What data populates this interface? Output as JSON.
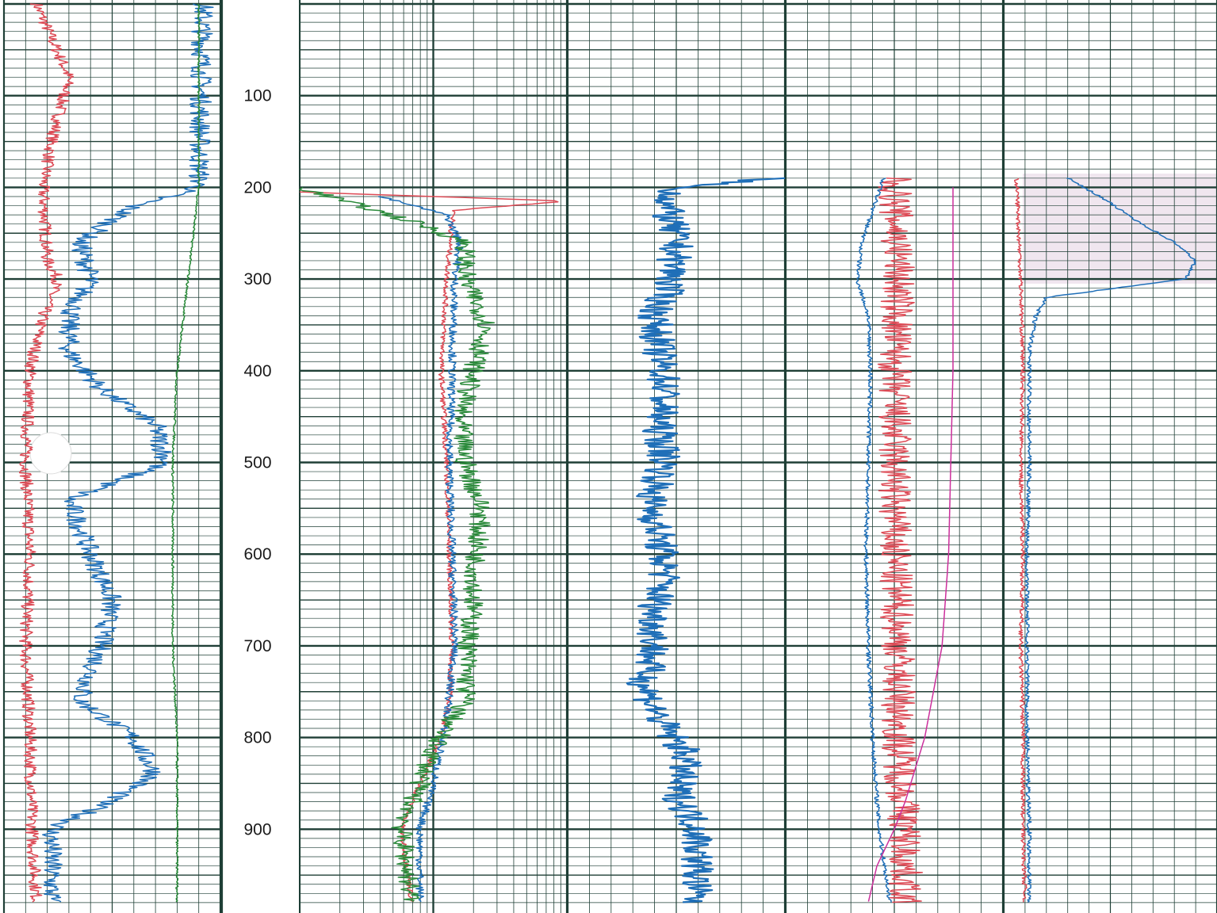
{
  "chart_data": {
    "type": "line",
    "title": "",
    "xlabel": "",
    "ylabel": "",
    "depth_axis": {
      "ylim": [
        0,
        980
      ],
      "tick_labels": [
        "100",
        "200",
        "300",
        "400",
        "500",
        "600",
        "700",
        "800",
        "900"
      ]
    },
    "grid": true,
    "colors": {
      "grid": "#1f3f36",
      "red": "#dd4a55",
      "blue": "#1f6fb8",
      "green": "#2a8a3a",
      "magenta": "#cc2f9c",
      "gray_fill": "#c8c8c8",
      "shade": "#f0e6ef"
    },
    "tracks": [
      {
        "curves": [
          {
            "color": "red",
            "depth": [
              0,
              80,
              150,
              200,
              280,
              300,
              340,
              400,
              500,
              600,
              700,
              800,
              900,
              980
            ],
            "value": [
              0.15,
              0.3,
              0.22,
              0.18,
              0.2,
              0.25,
              0.18,
              0.12,
              0.1,
              0.12,
              0.1,
              0.12,
              0.13,
              0.15
            ],
            "noise": 0.03
          },
          {
            "color": "blue",
            "depth": [
              0,
              200,
              220,
              260,
              300,
              340,
              380,
              420,
              460,
              500,
              540,
              600,
              650,
              700,
              760,
              800,
              840,
              880,
              900,
              980
            ],
            "value": [
              0.92,
              0.9,
              0.6,
              0.35,
              0.4,
              0.3,
              0.3,
              0.45,
              0.7,
              0.75,
              0.3,
              0.4,
              0.5,
              0.45,
              0.35,
              0.6,
              0.7,
              0.4,
              0.22,
              0.22
            ],
            "noise": 0.05
          },
          {
            "color": "green",
            "depth": [
              0,
              200,
              300,
              400,
              500,
              700,
              800,
              980
            ],
            "value": [
              0.9,
              0.9,
              0.85,
              0.8,
              0.78,
              0.78,
              0.8,
              0.8
            ],
            "noise": 0.005
          }
        ]
      },
      {
        "scale": "log",
        "curves": [
          {
            "color": "red",
            "depth": [
              205,
              215,
              225,
              240,
              300,
              400,
              500,
              600,
              700,
              760,
              800,
              850,
              900,
              980
            ],
            "value": [
              0.0,
              1.0,
              0.58,
              0.57,
              0.55,
              0.53,
              0.55,
              0.56,
              0.57,
              0.56,
              0.53,
              0.45,
              0.38,
              0.42
            ],
            "noise": 0.01
          },
          {
            "color": "blue",
            "depth": [
              210,
              230,
              260,
              300,
              400,
              500,
              600,
              700,
              780,
              850,
              900,
              980
            ],
            "value": [
              0.3,
              0.55,
              0.6,
              0.58,
              0.57,
              0.56,
              0.57,
              0.58,
              0.55,
              0.5,
              0.45,
              0.45
            ],
            "noise": 0.015
          },
          {
            "color": "green",
            "depth": [
              200,
              240,
              260,
              300,
              350,
              400,
              450,
              500,
              550,
              600,
              650,
              700,
              760,
              800,
              850,
              900,
              980
            ],
            "value": [
              0.0,
              0.45,
              0.62,
              0.62,
              0.7,
              0.65,
              0.6,
              0.62,
              0.68,
              0.66,
              0.65,
              0.63,
              0.62,
              0.52,
              0.45,
              0.38,
              0.42
            ],
            "noise": 0.04
          }
        ]
      },
      {
        "curves": [
          {
            "color": "blue",
            "depth": [
              190,
              200,
              220,
              260,
              300,
              340,
              380,
              420,
              460,
              500,
              540,
              580,
              620,
              660,
              700,
              740,
              780,
              820,
              860,
              900,
              940,
              980
            ],
            "value": [
              0.97,
              0.5,
              0.45,
              0.5,
              0.48,
              0.4,
              0.42,
              0.45,
              0.42,
              0.45,
              0.38,
              0.42,
              0.45,
              0.4,
              0.4,
              0.35,
              0.42,
              0.55,
              0.5,
              0.6,
              0.6,
              0.58
            ],
            "noise": 0.08
          }
        ]
      },
      {
        "curves": [
          {
            "color": "red",
            "depth": [
              190,
              300,
              400,
              500,
              600,
              700,
              800,
              900,
              980
            ],
            "value": [
              0.5,
              0.52,
              0.5,
              0.5,
              0.5,
              0.52,
              0.52,
              0.55,
              0.55
            ],
            "noise": 0.08
          },
          {
            "color": "blue",
            "depth": [
              190,
              260,
              300,
              340,
              400,
              500,
              600,
              700,
              800,
              900,
              980
            ],
            "value": [
              0.45,
              0.35,
              0.33,
              0.38,
              0.39,
              0.38,
              0.37,
              0.38,
              0.4,
              0.43,
              0.48
            ],
            "noise": 0.01
          },
          {
            "color": "magenta",
            "depth": [
              200,
              400,
              500,
              600,
              700,
              800,
              870,
              900,
              940,
              980
            ],
            "value": [
              0.77,
              0.77,
              0.76,
              0.75,
              0.72,
              0.64,
              0.55,
              0.5,
              0.42,
              0.38
            ],
            "noise": 0.0
          }
        ]
      },
      {
        "curves": [
          {
            "color": "red",
            "depth": [
              190,
              300,
              400,
              500,
              600,
              700,
              800,
              900,
              980
            ],
            "value": [
              0.06,
              0.08,
              0.09,
              0.08,
              0.09,
              0.08,
              0.09,
              0.09,
              0.1
            ],
            "noise": 0.01
          },
          {
            "color": "blue",
            "depth": [
              190,
              210,
              240,
              260,
              280,
              300,
              320,
              340,
              380,
              450,
              500,
              600,
              700,
              800,
              900,
              980
            ],
            "value": [
              0.3,
              0.45,
              0.65,
              0.8,
              0.9,
              0.85,
              0.2,
              0.15,
              0.12,
              0.12,
              0.12,
              0.11,
              0.11,
              0.11,
              0.12,
              0.12
            ],
            "noise": 0.01
          }
        ]
      }
    ]
  }
}
